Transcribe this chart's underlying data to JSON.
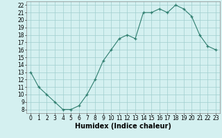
{
  "x": [
    0,
    1,
    2,
    3,
    4,
    5,
    6,
    7,
    8,
    9,
    10,
    11,
    12,
    13,
    14,
    15,
    16,
    17,
    18,
    19,
    20,
    21,
    22,
    23
  ],
  "y": [
    13,
    11,
    10,
    9,
    8,
    8,
    8.5,
    10,
    12,
    14.5,
    16,
    17.5,
    18,
    17.5,
    21,
    21,
    21.5,
    21,
    22,
    21.5,
    20.5,
    18,
    16.5,
    16
  ],
  "line_color": "#2e7d6e",
  "marker": "+",
  "bg_color": "#d4f0f0",
  "grid_color": "#a0cece",
  "xlabel": "Humidex (Indice chaleur)",
  "xlim": [
    -0.5,
    23.5
  ],
  "ylim": [
    7.5,
    22.5
  ],
  "yticks": [
    8,
    9,
    10,
    11,
    12,
    13,
    14,
    15,
    16,
    17,
    18,
    19,
    20,
    21,
    22
  ],
  "xticks": [
    0,
    1,
    2,
    3,
    4,
    5,
    6,
    7,
    8,
    9,
    10,
    11,
    12,
    13,
    14,
    15,
    16,
    17,
    18,
    19,
    20,
    21,
    22,
    23
  ],
  "tick_fontsize": 5.5,
  "label_fontsize": 7
}
